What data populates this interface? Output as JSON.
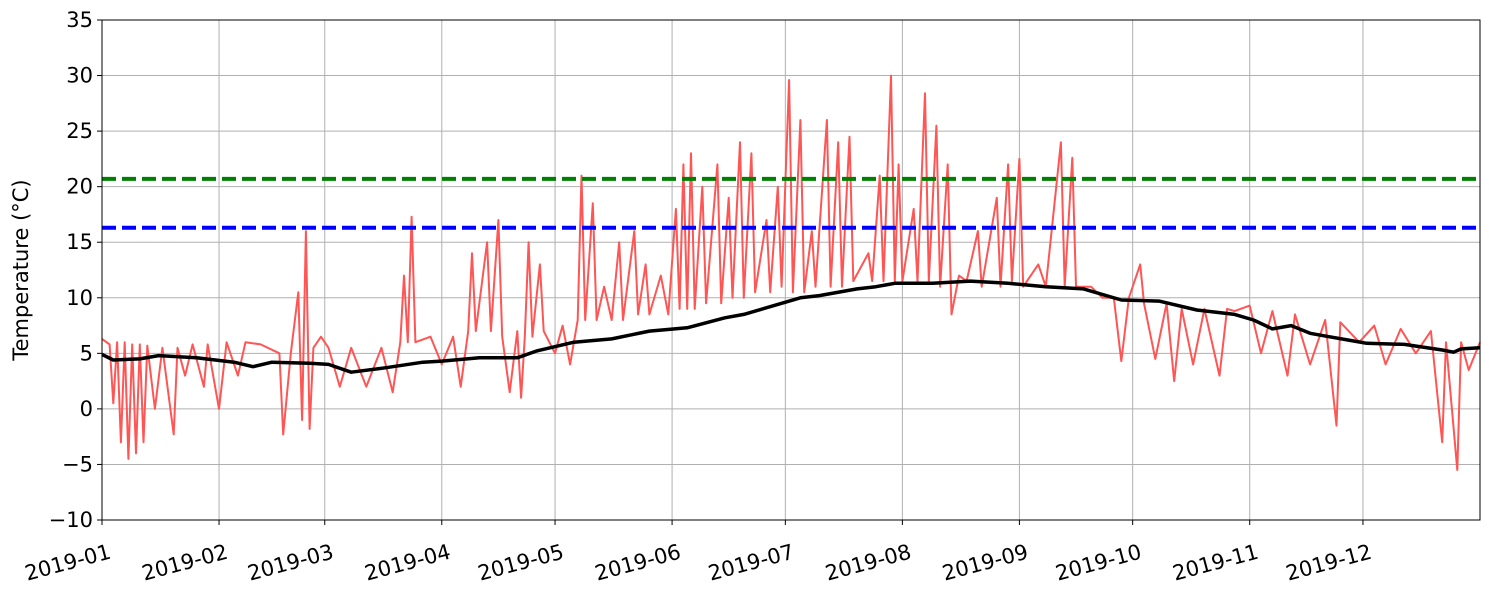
{
  "chart_data": {
    "type": "line",
    "ylabel": "Temperature (°C)",
    "xlim": [
      0,
      365
    ],
    "xticks": [
      {
        "value": 0,
        "label": "2019-01"
      },
      {
        "value": 31,
        "label": "2019-02"
      },
      {
        "value": 59,
        "label": "2019-03"
      },
      {
        "value": 90,
        "label": "2019-04"
      },
      {
        "value": 120,
        "label": "2019-05"
      },
      {
        "value": 151,
        "label": "2019-06"
      },
      {
        "value": 181,
        "label": "2019-07"
      },
      {
        "value": 212,
        "label": "2019-08"
      },
      {
        "value": 243,
        "label": "2019-09"
      },
      {
        "value": 273,
        "label": "2019-10"
      },
      {
        "value": 304,
        "label": "2019-11"
      },
      {
        "value": 334,
        "label": "2019-12"
      }
    ],
    "ylim": [
      -10,
      35
    ],
    "yticks": [
      {
        "value": -10,
        "label": "−10"
      },
      {
        "value": -5,
        "label": "−5"
      },
      0,
      5,
      10,
      15,
      20,
      25,
      30,
      35
    ],
    "grid": true,
    "series": [
      {
        "color": "#ff5555",
        "width": 2,
        "x": [
          0,
          2,
          3,
          4,
          5,
          6,
          7,
          8,
          9,
          10,
          11,
          12,
          14,
          16,
          19,
          20,
          22,
          24,
          27,
          28,
          31,
          33,
          36,
          38,
          42,
          47,
          48,
          50,
          52,
          53,
          54,
          55,
          56,
          58,
          60,
          63,
          66,
          70,
          74,
          77,
          79,
          80,
          81,
          82,
          83,
          87,
          90,
          93,
          95,
          97,
          98,
          99,
          102,
          103,
          105,
          106,
          108,
          110,
          111,
          112,
          113,
          114,
          116,
          117,
          120,
          122,
          124,
          126,
          127,
          128,
          130,
          131,
          133,
          135,
          137,
          138,
          141,
          142,
          144,
          145,
          148,
          150,
          152,
          153,
          154,
          155,
          156,
          157,
          159,
          160,
          163,
          164,
          166,
          167,
          169,
          170,
          172,
          173,
          176,
          177,
          179,
          180,
          182,
          183,
          185,
          186,
          188,
          189,
          192,
          193,
          195,
          196,
          198,
          199,
          203,
          204,
          206,
          207,
          209,
          210,
          211,
          212,
          215,
          216,
          218,
          219,
          221,
          222,
          224,
          225,
          227,
          229,
          232,
          233,
          237,
          238,
          240,
          241,
          243,
          244,
          248,
          250,
          254,
          255,
          257,
          258,
          262,
          265,
          268,
          270,
          272,
          275,
          276,
          279,
          282,
          284,
          286,
          289,
          292,
          296,
          298,
          300,
          304,
          307,
          310,
          314,
          316,
          320,
          324,
          327,
          328,
          333,
          337,
          340,
          344,
          348,
          352,
          355,
          356,
          359,
          360,
          362,
          365
        ],
        "values": [
          6.3,
          5.8,
          0.5,
          6,
          -3,
          6,
          -4.5,
          5.8,
          -4,
          5.8,
          -3,
          5.7,
          0,
          5.5,
          -2.3,
          5.5,
          3,
          5.8,
          2,
          5.8,
          0,
          6,
          3,
          6,
          5.8,
          5,
          -2.3,
          5,
          10.5,
          -1,
          16,
          -1.8,
          5.5,
          6.5,
          5.5,
          2,
          5.5,
          2,
          5.5,
          1.5,
          6,
          12,
          6,
          17.3,
          6,
          6.5,
          4,
          6.5,
          2,
          7,
          14,
          7,
          15,
          7,
          17,
          6.5,
          1.5,
          7,
          1,
          6.5,
          15,
          6.5,
          13,
          7,
          5,
          7.5,
          4,
          8,
          21,
          8,
          18.5,
          8,
          11,
          8,
          15,
          8,
          16,
          8.5,
          13,
          8.5,
          12,
          8.5,
          18,
          9,
          22,
          9,
          23,
          9,
          20,
          9.5,
          22,
          9.5,
          19,
          10,
          24,
          10,
          23,
          10.5,
          17,
          10.5,
          20,
          11,
          29.6,
          10.5,
          26,
          10.5,
          16,
          11,
          26,
          11,
          24,
          11,
          24.5,
          11.5,
          14,
          11.5,
          21,
          11.5,
          30,
          11.5,
          22,
          11.5,
          18,
          11.5,
          28.4,
          11.5,
          25.5,
          11,
          22,
          8.5,
          12,
          11.5,
          16,
          11,
          19,
          11,
          22,
          11.5,
          22.5,
          11,
          13,
          11,
          24,
          11,
          22.6,
          11,
          11,
          10,
          10,
          4.3,
          10,
          13,
          9.5,
          4.5,
          9.5,
          2.5,
          9,
          4,
          9,
          3,
          9,
          8.8,
          9.3,
          5,
          8.8,
          3,
          8.5,
          4,
          8,
          -1.5,
          7.8,
          6,
          7.5,
          4,
          7.2,
          5,
          7,
          -3,
          6,
          -5.5,
          6,
          3.5,
          6
        ]
      },
      {
        "color": "#000000",
        "width": 3.5,
        "x": [
          0,
          3,
          10,
          15,
          25,
          35,
          40,
          45,
          55,
          60,
          66,
          75,
          85,
          90,
          100,
          110,
          115,
          125,
          135,
          145,
          155,
          165,
          170,
          180,
          185,
          190,
          200,
          205,
          210,
          220,
          230,
          240,
          250,
          260,
          270,
          280,
          290,
          300,
          305,
          310,
          315,
          320,
          325,
          330,
          335,
          345,
          355,
          358,
          360,
          365
        ],
        "values": [
          4.9,
          4.4,
          4.5,
          4.8,
          4.6,
          4.2,
          3.8,
          4.2,
          4.1,
          4,
          3.3,
          3.7,
          4.2,
          4.3,
          4.6,
          4.6,
          5.2,
          6,
          6.3,
          7,
          7.3,
          8.2,
          8.5,
          9.5,
          10,
          10.2,
          10.8,
          11,
          11.3,
          11.3,
          11.5,
          11.3,
          11,
          10.8,
          9.8,
          9.7,
          8.9,
          8.5,
          8,
          7.2,
          7.5,
          6.8,
          6.5,
          6.2,
          5.9,
          5.8,
          5.3,
          5.1,
          5.4,
          5.5
        ]
      }
    ],
    "hlines": [
      {
        "value": 20.7,
        "color": "#008000"
      },
      {
        "value": 16.3,
        "color": "#0000ff"
      }
    ]
  }
}
